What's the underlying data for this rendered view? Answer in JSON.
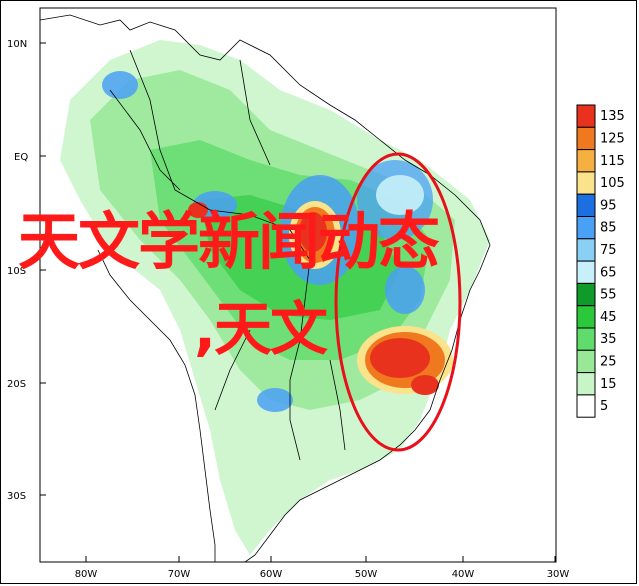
{
  "map": {
    "lat_labels": [
      "10N",
      "EQ",
      "10S",
      "20S",
      "30S"
    ],
    "lon_labels": [
      "80W",
      "70W",
      "60W",
      "50W",
      "40W",
      "30W"
    ]
  },
  "legend": {
    "levels": [
      "135",
      "125",
      "115",
      "105",
      "95",
      "85",
      "75",
      "65",
      "55",
      "45",
      "35",
      "25",
      "15",
      "5"
    ],
    "colors": [
      "#e8321e",
      "#f0781e",
      "#f5b040",
      "#fbe38c",
      "#1d6ee0",
      "#4aa0f5",
      "#8ad0f5",
      "#c8f0fa",
      "#0f9a2a",
      "#2bc83c",
      "#60dc6c",
      "#98e898",
      "#c8f5c8",
      "#ffffff"
    ]
  },
  "overlay": {
    "title": "天文学新闻动态",
    "subtitle": ",天文",
    "title_color": "#ff1a1a",
    "ellipse_color": "#e8101a"
  }
}
